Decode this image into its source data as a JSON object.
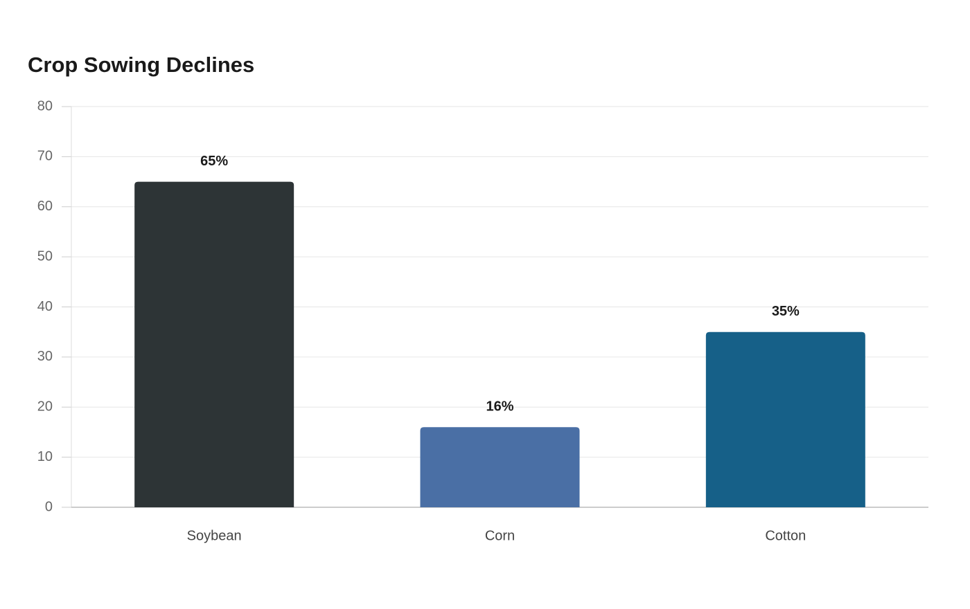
{
  "chart_data": {
    "type": "bar",
    "title": "Crop Sowing Declines",
    "categories": [
      "Soybean",
      "Corn",
      "Cotton"
    ],
    "values": [
      65,
      16,
      35
    ],
    "value_labels": [
      "65%",
      "16%",
      "35%"
    ],
    "colors": [
      "#2d3436",
      "#4a6fa5",
      "#166088"
    ],
    "ylim": [
      0,
      80
    ],
    "yticks": [
      0,
      10,
      20,
      30,
      40,
      50,
      60,
      70,
      80
    ],
    "grid": true
  }
}
